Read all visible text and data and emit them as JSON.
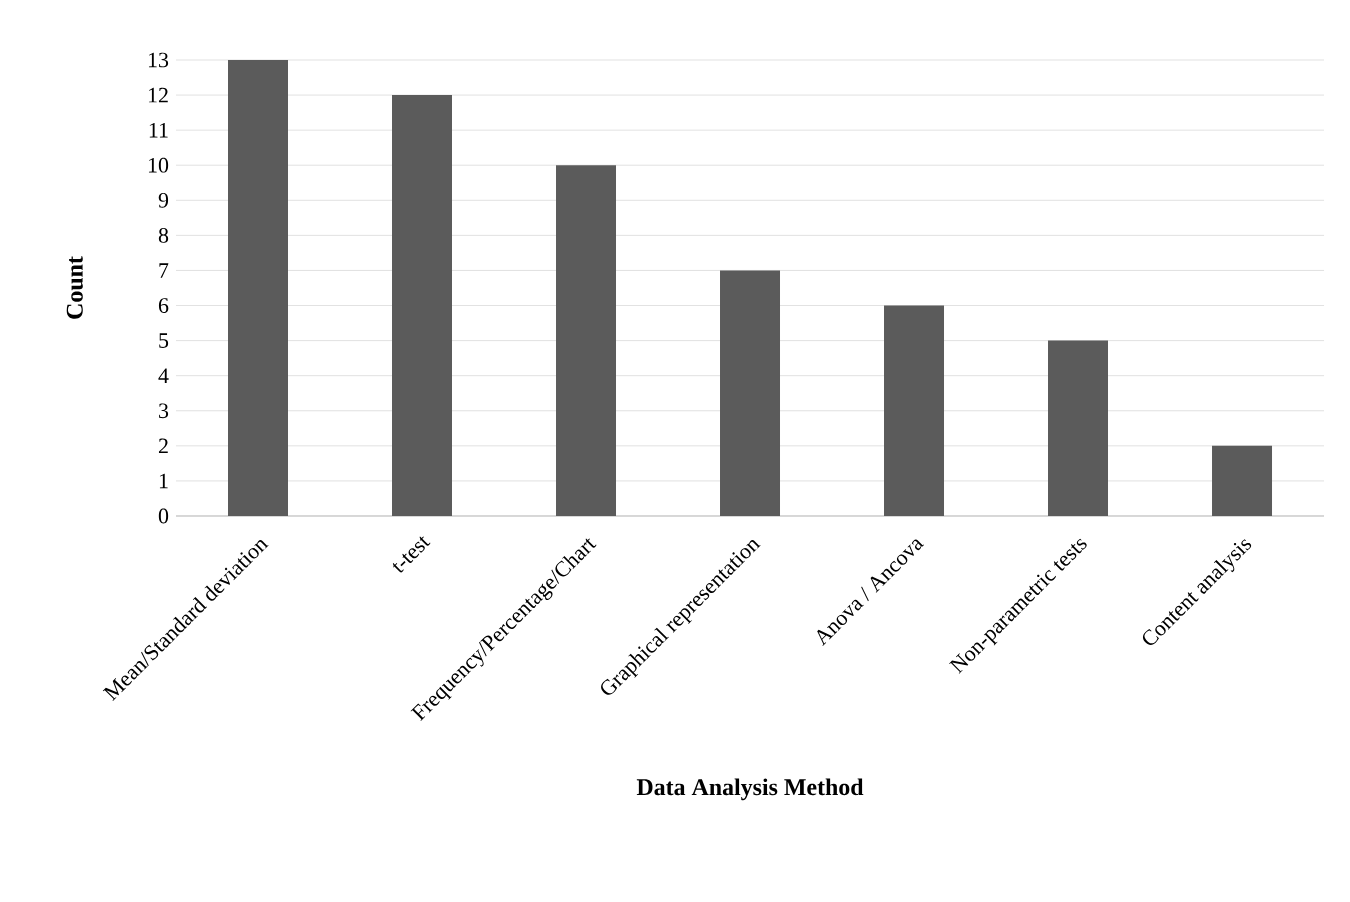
{
  "chart_data": {
    "type": "bar",
    "xlabel": "Data Analysis Method",
    "ylabel": "Count",
    "categories": [
      "Mean/Standard deviation",
      "t-test",
      "Frequency/Percentage/Chart",
      "Graphical representation",
      "Anova / Ancova",
      "Non-parametric tests",
      "Content analysis"
    ],
    "values": [
      13,
      12,
      10,
      7,
      6,
      5,
      2
    ],
    "color": "#5b5b5b",
    "ylim": [
      0,
      13
    ],
    "yticks": [
      0,
      1,
      2,
      3,
      4,
      5,
      6,
      7,
      8,
      9,
      10,
      11,
      12,
      13
    ],
    "grid": "y"
  }
}
